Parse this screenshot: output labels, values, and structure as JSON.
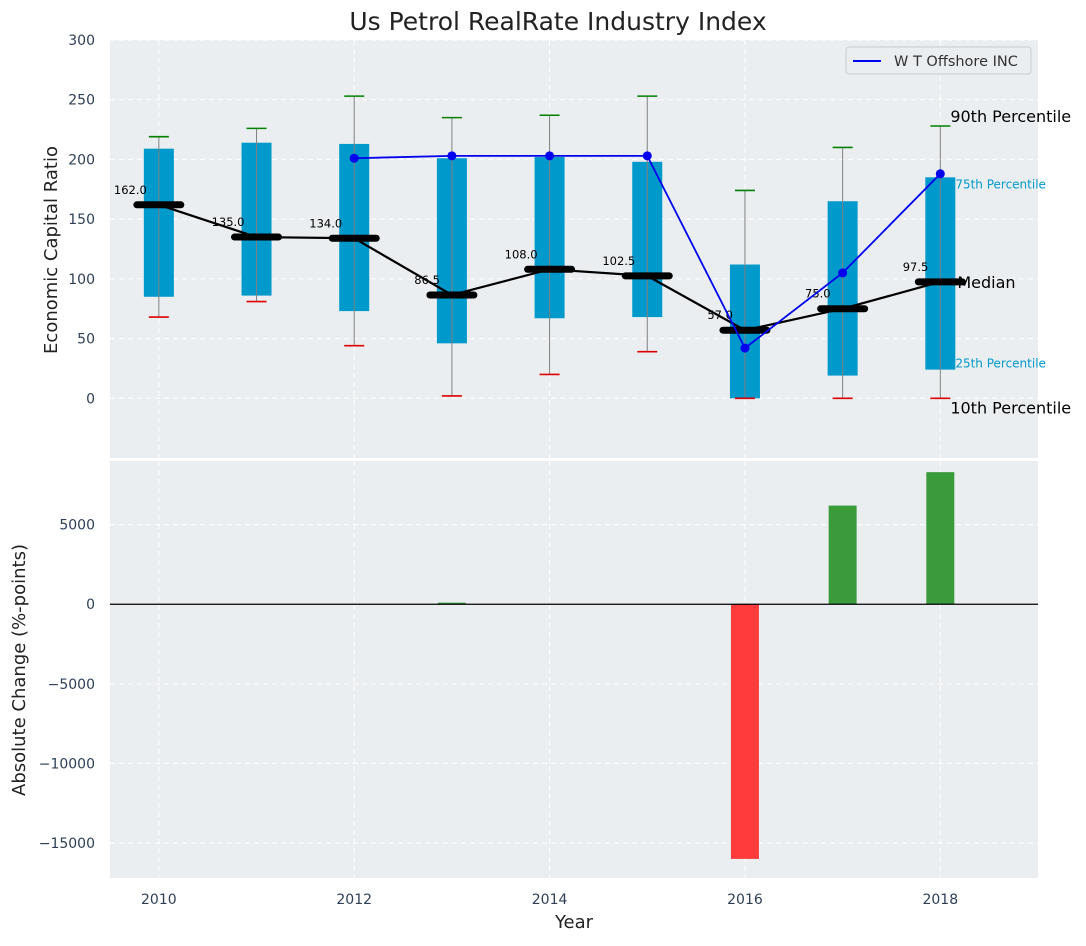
{
  "chart_data": [
    {
      "type": "box_line",
      "title": "Us Petrol RealRate Industry Index",
      "xlabel": "",
      "ylabel": "Economic Capital Ratio",
      "ylim": [
        -50,
        300
      ],
      "yticks": [
        0,
        50,
        100,
        150,
        200,
        250,
        300
      ],
      "years": [
        2010,
        2011,
        2012,
        2013,
        2014,
        2015,
        2016,
        2017,
        2018
      ],
      "boxes": [
        {
          "year": 2010,
          "p10": 68,
          "p25": 85,
          "median": 162.0,
          "p75": 209,
          "p90": 219,
          "median_label": "162.0"
        },
        {
          "year": 2011,
          "p10": 81,
          "p25": 86,
          "median": 135.0,
          "p75": 214,
          "p90": 226,
          "median_label": "135.0"
        },
        {
          "year": 2012,
          "p10": 44,
          "p25": 73,
          "median": 134.0,
          "p75": 213,
          "p90": 253,
          "median_label": "134.0"
        },
        {
          "year": 2013,
          "p10": 2,
          "p25": 46,
          "median": 86.5,
          "p75": 201,
          "p90": 235,
          "median_label": "86.5"
        },
        {
          "year": 2014,
          "p10": 20,
          "p25": 67,
          "median": 108.0,
          "p75": 202,
          "p90": 237,
          "median_label": "108.0"
        },
        {
          "year": 2015,
          "p10": 39,
          "p25": 68,
          "median": 102.5,
          "p75": 198,
          "p90": 253,
          "median_label": "102.5"
        },
        {
          "year": 2016,
          "p10": 0,
          "p25": 0,
          "median": 57.0,
          "p75": 112,
          "p90": 174,
          "median_label": "57.0"
        },
        {
          "year": 2017,
          "p10": 0,
          "p25": 19,
          "median": 75.0,
          "p75": 165,
          "p90": 210,
          "median_label": "75.0"
        },
        {
          "year": 2018,
          "p10": 0,
          "p25": 24,
          "median": 97.5,
          "p75": 185,
          "p90": 228,
          "median_label": "97.5"
        }
      ],
      "series": [
        {
          "name": "W T Offshore INC",
          "x": [
            2012,
            2013,
            2014,
            2015,
            2016,
            2017,
            2018
          ],
          "values": [
            201,
            203,
            203,
            203,
            42,
            105,
            188
          ]
        }
      ],
      "legend": {
        "position": "top-right",
        "entries": [
          "W T Offshore INC"
        ]
      },
      "annotations": {
        "p90": "90th Percentile",
        "p75": "75th Percentile",
        "median": "Median",
        "p25": "25th Percentile",
        "p10": "10th Percentile"
      },
      "grid": true
    },
    {
      "type": "bar",
      "xlabel": "Year",
      "ylabel": "Absolute Change (%-points)",
      "ylim": [
        -17200,
        9000
      ],
      "yticks": [
        -15000,
        -10000,
        -5000,
        0,
        5000
      ],
      "ytick_labels": [
        "−15000",
        "−10000",
        "−5000",
        "0",
        "5000"
      ],
      "xlim": [
        2009.5,
        2019.0
      ],
      "xticks": [
        2010,
        2012,
        2014,
        2016,
        2018
      ],
      "xtick_labels": [
        "2010",
        "2012",
        "2014",
        "2016",
        "2018"
      ],
      "categories": [
        2013,
        2016,
        2017,
        2018
      ],
      "values": [
        100,
        -16000,
        6200,
        8300
      ],
      "grid": true
    }
  ],
  "colors": {
    "panel_bg": "#ebeef0",
    "box": "#0099cc",
    "median_line": "#000000",
    "series_line": "#0000ee",
    "whisker_top": "#008000",
    "whisker_bottom": "#dd0000",
    "whisker_stem": "#808080",
    "bar_positive": "#3a9b3a",
    "bar_negative": "#ff3b3b",
    "tick_text": "#2e3f55",
    "annotation_small": "#0099cc"
  }
}
